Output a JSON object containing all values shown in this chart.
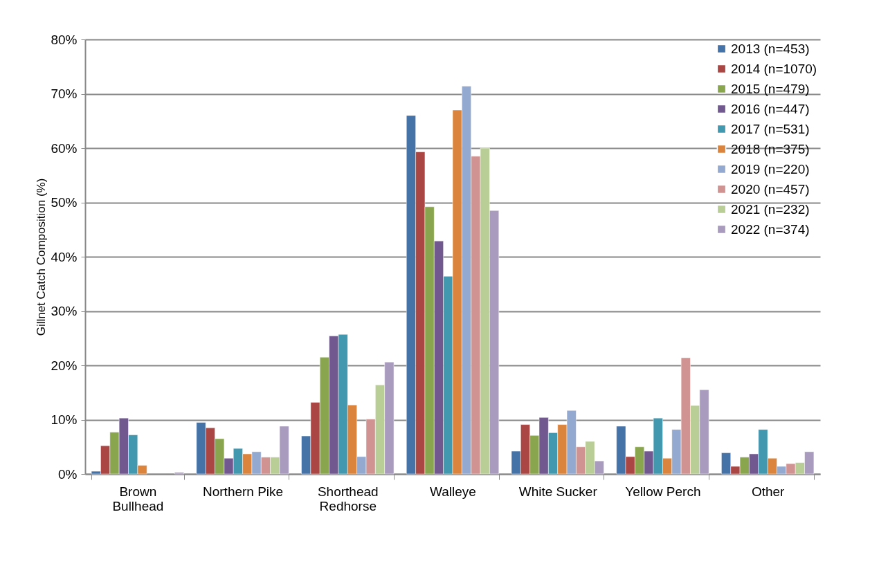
{
  "chart_data": {
    "type": "bar",
    "ylabel": "Gillnet Catch Composition (%)",
    "categories": [
      "Brown Bullhead",
      "Northern Pike",
      "Shorthead Redhorse",
      "Walleye",
      "White Sucker",
      "Yellow Perch",
      "Other"
    ],
    "series": [
      {
        "name": "2013 (n=453)",
        "color": "#4572a7",
        "values": [
          0.5,
          9.5,
          7.0,
          66.0,
          4.2,
          8.8,
          3.9
        ]
      },
      {
        "name": "2014 (n=1070)",
        "color": "#aa4643",
        "values": [
          5.2,
          8.5,
          13.2,
          59.3,
          9.1,
          3.2,
          1.4
        ]
      },
      {
        "name": "2015 (n=479)",
        "color": "#89a54e",
        "values": [
          7.7,
          6.5,
          21.5,
          49.2,
          7.1,
          5.0,
          3.1
        ]
      },
      {
        "name": "2016 (n=447)",
        "color": "#71588f",
        "values": [
          10.3,
          2.9,
          25.4,
          42.9,
          10.4,
          4.2,
          3.7
        ]
      },
      {
        "name": "2017 (n=531)",
        "color": "#4198af",
        "values": [
          7.2,
          4.7,
          25.7,
          36.4,
          7.6,
          10.3,
          8.2
        ]
      },
      {
        "name": "2018 (n=375)",
        "color": "#db843d",
        "values": [
          1.6,
          3.7,
          12.7,
          67.0,
          9.1,
          2.9,
          2.9
        ]
      },
      {
        "name": "2019 (n=220)",
        "color": "#93a9cf",
        "values": [
          null,
          4.1,
          3.2,
          71.4,
          11.7,
          8.2,
          1.4
        ]
      },
      {
        "name": "2020 (n=457)",
        "color": "#d19392",
        "values": [
          null,
          3.1,
          10.1,
          58.5,
          5.0,
          21.4,
          1.9
        ]
      },
      {
        "name": "2021 (n=232)",
        "color": "#b9cd96",
        "values": [
          null,
          3.1,
          16.4,
          60.0,
          6.0,
          12.6,
          2.1
        ]
      },
      {
        "name": "2022 (n=374)",
        "color": "#a99bbd",
        "values": [
          0.3,
          8.8,
          20.6,
          48.5,
          2.4,
          15.5,
          4.1
        ]
      }
    ],
    "ylim": [
      0,
      80
    ],
    "yticks": [
      {
        "value": 0,
        "label": "0%"
      },
      {
        "value": 10,
        "label": "10%"
      },
      {
        "value": 20,
        "label": "20%"
      },
      {
        "value": 30,
        "label": "30%"
      },
      {
        "value": 40,
        "label": "40%"
      },
      {
        "value": 50,
        "label": "50%"
      },
      {
        "value": 60,
        "label": "60%"
      },
      {
        "value": 70,
        "label": "70%"
      },
      {
        "value": 80,
        "label": "80%"
      }
    ],
    "grid": "y",
    "legend": "top right"
  }
}
